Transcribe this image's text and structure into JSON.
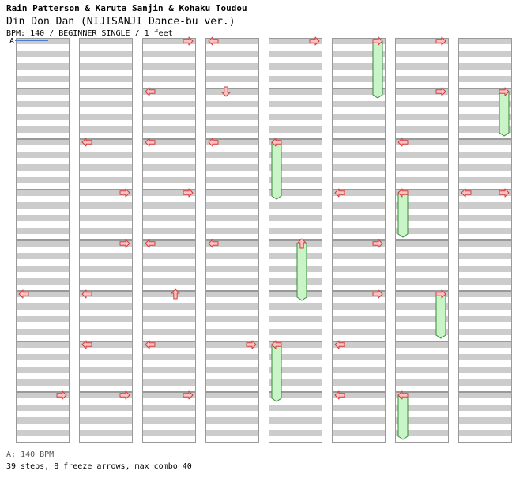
{
  "header": {
    "artist": "Rain Patterson & Karuta Sanjin & Kohaku Toudou",
    "title": "Din Don Dan (NIJISANJI Dance-bu ver.)",
    "meta": "BPM: 140 / BEGINNER SINGLE / 1 feet"
  },
  "bpm_marker": {
    "label": "A"
  },
  "footer": {
    "bpm_info": "A: 140 BPM",
    "summary": "39 steps, 8 freeze arrows, max combo 40"
  },
  "colors": {
    "stripe": "#cccccc",
    "border": "#999999",
    "arrow_fill": "#ffc0c0",
    "arrow_stroke": "#d04040",
    "freeze_fill": "#c8f4c8",
    "freeze_stroke": "#3a8a3a",
    "bpm_line": "#4a7bd6"
  },
  "chart": {
    "columns": 8,
    "measures_per_column": 8,
    "rows_per_measure": 8,
    "lane_order": [
      "left",
      "down",
      "up",
      "right"
    ],
    "notes": [
      {
        "col": 0,
        "measure": 5,
        "row": 0,
        "dir": "left"
      },
      {
        "col": 0,
        "measure": 7,
        "row": 0,
        "dir": "right"
      },
      {
        "col": 1,
        "measure": 2,
        "row": 0,
        "dir": "left"
      },
      {
        "col": 1,
        "measure": 3,
        "row": 0,
        "dir": "right"
      },
      {
        "col": 1,
        "measure": 4,
        "row": 0,
        "dir": "right"
      },
      {
        "col": 1,
        "measure": 5,
        "row": 0,
        "dir": "left"
      },
      {
        "col": 1,
        "measure": 6,
        "row": 0,
        "dir": "left"
      },
      {
        "col": 1,
        "measure": 7,
        "row": 0,
        "dir": "right"
      },
      {
        "col": 2,
        "measure": 0,
        "row": 0,
        "dir": "right"
      },
      {
        "col": 2,
        "measure": 1,
        "row": 0,
        "dir": "left"
      },
      {
        "col": 2,
        "measure": 2,
        "row": 0,
        "dir": "left"
      },
      {
        "col": 2,
        "measure": 3,
        "row": 0,
        "dir": "right"
      },
      {
        "col": 2,
        "measure": 4,
        "row": 0,
        "dir": "left"
      },
      {
        "col": 2,
        "measure": 5,
        "row": 0,
        "dir": "up"
      },
      {
        "col": 2,
        "measure": 6,
        "row": 0,
        "dir": "left"
      },
      {
        "col": 2,
        "measure": 7,
        "row": 0,
        "dir": "right"
      },
      {
        "col": 3,
        "measure": 0,
        "row": 0,
        "dir": "left"
      },
      {
        "col": 3,
        "measure": 1,
        "row": 0,
        "dir": "down"
      },
      {
        "col": 3,
        "measure": 2,
        "row": 0,
        "dir": "left"
      },
      {
        "col": 3,
        "measure": 4,
        "row": 0,
        "dir": "left"
      },
      {
        "col": 3,
        "measure": 6,
        "row": 0,
        "dir": "right"
      },
      {
        "col": 4,
        "measure": 0,
        "row": 0,
        "dir": "right"
      },
      {
        "col": 4,
        "measure": 2,
        "row": 0,
        "dir": "left",
        "freeze_rows": 9
      },
      {
        "col": 4,
        "measure": 4,
        "row": 0,
        "dir": "up",
        "freeze_rows": 9
      },
      {
        "col": 4,
        "measure": 6,
        "row": 0,
        "dir": "left",
        "freeze_rows": 9
      },
      {
        "col": 5,
        "measure": 0,
        "row": 0,
        "dir": "right",
        "freeze_rows": 9
      },
      {
        "col": 5,
        "measure": 3,
        "row": 0,
        "dir": "left"
      },
      {
        "col": 5,
        "measure": 4,
        "row": 0,
        "dir": "right"
      },
      {
        "col": 5,
        "measure": 5,
        "row": 0,
        "dir": "right"
      },
      {
        "col": 5,
        "measure": 6,
        "row": 0,
        "dir": "left"
      },
      {
        "col": 5,
        "measure": 7,
        "row": 0,
        "dir": "left"
      },
      {
        "col": 6,
        "measure": 0,
        "row": 0,
        "dir": "right"
      },
      {
        "col": 6,
        "measure": 1,
        "row": 0,
        "dir": "right"
      },
      {
        "col": 6,
        "measure": 2,
        "row": 0,
        "dir": "left"
      },
      {
        "col": 6,
        "measure": 3,
        "row": 0,
        "dir": "left",
        "freeze_rows": 7
      },
      {
        "col": 6,
        "measure": 5,
        "row": 0,
        "dir": "right",
        "freeze_rows": 7
      },
      {
        "col": 6,
        "measure": 7,
        "row": 0,
        "dir": "left",
        "freeze_rows": 7
      },
      {
        "col": 7,
        "measure": 1,
        "row": 0,
        "dir": "right",
        "freeze_rows": 7
      },
      {
        "col": 7,
        "measure": 3,
        "row": 0,
        "dir": "left"
      },
      {
        "col": 7,
        "measure": 3,
        "row": 0,
        "dir": "right"
      }
    ]
  }
}
